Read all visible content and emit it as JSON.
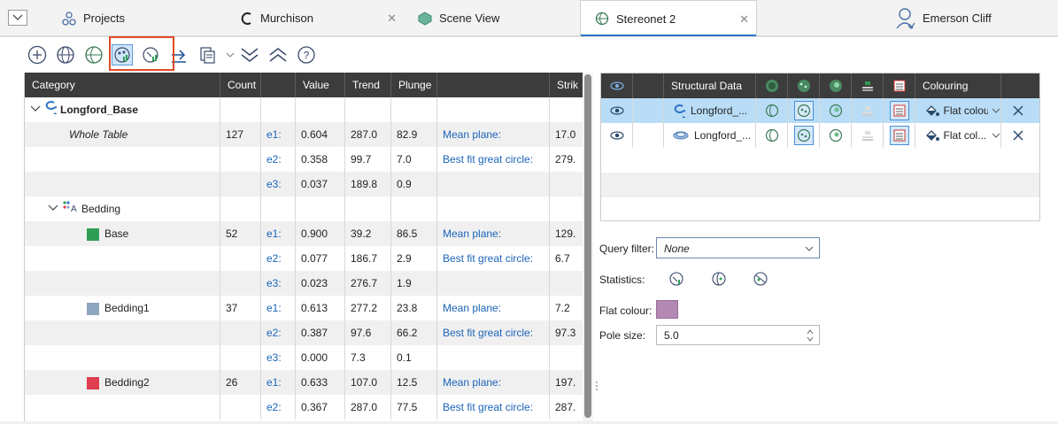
{
  "tabs": [
    {
      "label": "Projects",
      "icon": "projects-icon"
    },
    {
      "label": "Murchison",
      "icon": "murchison-icon"
    },
    {
      "label": "Scene View",
      "icon": "scene-view-icon"
    },
    {
      "label": "Stereonet 2",
      "icon": "stereonet-icon"
    }
  ],
  "user": {
    "name": "Emerson Cliff"
  },
  "colors": {
    "accent": "#2b73c4",
    "highlight": "#e04a2a",
    "base": "#2e9e55",
    "bedding1": "#8fa4bf",
    "bedding2": "#de3e4e",
    "flat_colour": "#b389b3"
  },
  "left_table": {
    "headers": {
      "category": "Category",
      "count": "Count",
      "value": "Value",
      "trend": "Trend",
      "plunge": "Plunge",
      "strike": "Strik"
    },
    "rows": [
      {
        "category": "Longford_Base",
        "count": "",
        "e": "",
        "value": "",
        "trend": "",
        "plunge": "",
        "label": "",
        "strike": ""
      },
      {
        "category": "Whole Table",
        "count": "127",
        "e": "e1:",
        "value": "0.604",
        "trend": "287.0",
        "plunge": "82.9",
        "label": "Mean plane:",
        "strike": "17.0"
      },
      {
        "category": "",
        "count": "",
        "e": "e2:",
        "value": "0.358",
        "trend": "99.7",
        "plunge": "7.0",
        "label": "Best fit great circle:",
        "strike": "279."
      },
      {
        "category": "",
        "count": "",
        "e": "e3:",
        "value": "0.037",
        "trend": "189.8",
        "plunge": "0.9",
        "label": "",
        "strike": ""
      },
      {
        "category": "Bedding",
        "count": "",
        "e": "",
        "value": "",
        "trend": "",
        "plunge": "",
        "label": "",
        "strike": ""
      },
      {
        "category": "Base",
        "count": "52",
        "e": "e1:",
        "value": "0.900",
        "trend": "39.2",
        "plunge": "86.5",
        "label": "Mean plane:",
        "strike": "129."
      },
      {
        "category": "",
        "count": "",
        "e": "e2:",
        "value": "0.077",
        "trend": "186.7",
        "plunge": "2.9",
        "label": "Best fit great circle:",
        "strike": "6.7"
      },
      {
        "category": "",
        "count": "",
        "e": "e3:",
        "value": "0.023",
        "trend": "276.7",
        "plunge": "1.9",
        "label": "",
        "strike": ""
      },
      {
        "category": "Bedding1",
        "count": "37",
        "e": "e1:",
        "value": "0.613",
        "trend": "277.2",
        "plunge": "23.8",
        "label": "Mean plane:",
        "strike": "7.2"
      },
      {
        "category": "",
        "count": "",
        "e": "e2:",
        "value": "0.387",
        "trend": "97.6",
        "plunge": "66.2",
        "label": "Best fit great circle:",
        "strike": "97.3"
      },
      {
        "category": "",
        "count": "",
        "e": "e3:",
        "value": "0.000",
        "trend": "7.3",
        "plunge": "0.1",
        "label": "",
        "strike": ""
      },
      {
        "category": "Bedding2",
        "count": "26",
        "e": "e1:",
        "value": "0.633",
        "trend": "107.0",
        "plunge": "12.5",
        "label": "Mean plane:",
        "strike": "197."
      },
      {
        "category": "",
        "count": "",
        "e": "e2:",
        "value": "0.367",
        "trend": "287.0",
        "plunge": "77.5",
        "label": "Best fit great circle:",
        "strike": "287."
      }
    ]
  },
  "right_table": {
    "headers": {
      "structural_data": "Structural Data",
      "colouring": "Colouring"
    },
    "rows": [
      {
        "name": "Longford_...",
        "colouring": "Flat colour..."
      },
      {
        "name": "Longford_...",
        "colouring": "Flat col..."
      }
    ]
  },
  "properties": {
    "query_filter_label": "Query filter:",
    "query_filter_value": "None",
    "statistics_label": "Statistics:",
    "flat_colour_label": "Flat colour:",
    "pole_size_label": "Pole size:",
    "pole_size_value": "5.0"
  }
}
